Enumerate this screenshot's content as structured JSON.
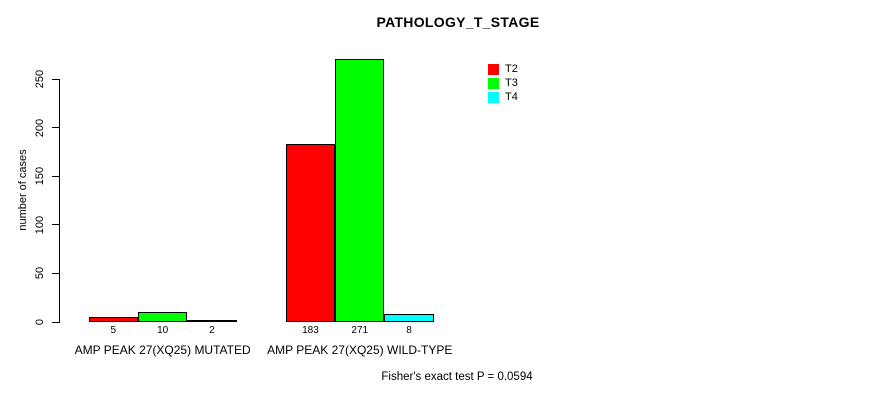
{
  "chart_data": {
    "type": "bar",
    "title": "PATHOLOGY_T_STAGE",
    "ylabel": "number of cases",
    "xlabel": "",
    "annotation": "Fisher's exact test P = 0.0594",
    "categories": [
      "AMP PEAK 27(XQ25) MUTATED",
      "AMP PEAK 27(XQ25) WILD-TYPE"
    ],
    "series": [
      {
        "name": "T2",
        "color": "#ff0000",
        "values": [
          5,
          183
        ]
      },
      {
        "name": "T3",
        "color": "#00ff00",
        "values": [
          10,
          271
        ]
      },
      {
        "name": "T4",
        "color": "#00ffff",
        "values": [
          2,
          8
        ]
      }
    ],
    "yticks": [
      0,
      50,
      100,
      150,
      200,
      250
    ],
    "ylim": [
      0,
      250
    ],
    "grid": false,
    "bar_border_color": "#000000",
    "legend_position": "top-right",
    "show_value_labels": true
  }
}
